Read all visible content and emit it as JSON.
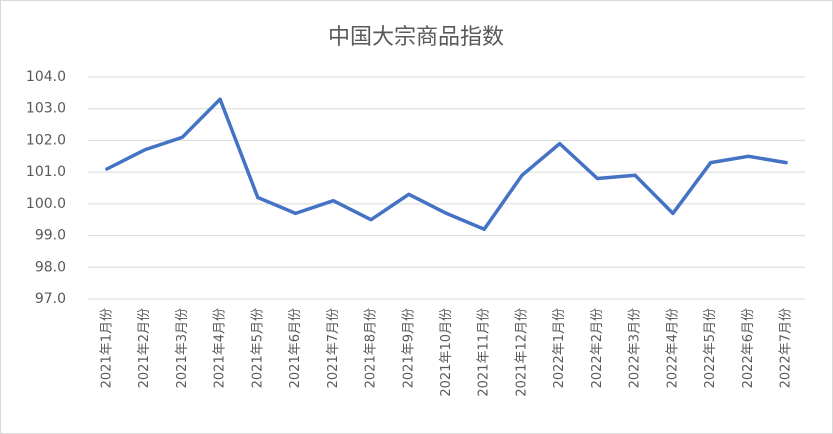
{
  "chart_data": {
    "type": "line",
    "title": "中国大宗商品指数",
    "categories": [
      "2021年1月份",
      "2021年2月份",
      "2021年3月份",
      "2021年4月份",
      "2021年5月份",
      "2021年6月份",
      "2021年7月份",
      "2021年8月份",
      "2021年9月份",
      "2021年10月份",
      "2021年11月份",
      "2021年12月份",
      "2022年1月份",
      "2022年2月份",
      "2022年3月份",
      "2022年4月份",
      "2022年5月份",
      "2022年6月份",
      "2022年7月份"
    ],
    "values": [
      101.1,
      101.7,
      102.1,
      103.3,
      100.2,
      99.7,
      100.1,
      99.5,
      100.3,
      99.7,
      99.2,
      100.9,
      101.9,
      100.8,
      100.9,
      99.7,
      101.3,
      101.5,
      101.3
    ],
    "color": "#4472c4",
    "ylim": [
      97,
      104
    ],
    "yticks": [
      {
        "value": 97,
        "label": "97.0"
      },
      {
        "value": 98,
        "label": "98.0"
      },
      {
        "value": 99,
        "label": "99.0"
      },
      {
        "value": 100,
        "label": "100.0"
      },
      {
        "value": 101,
        "label": "101.0"
      },
      {
        "value": 102,
        "label": "102.0"
      },
      {
        "value": 103,
        "label": "103.0"
      },
      {
        "value": 104,
        "label": "104.0"
      }
    ],
    "grid": true
  }
}
